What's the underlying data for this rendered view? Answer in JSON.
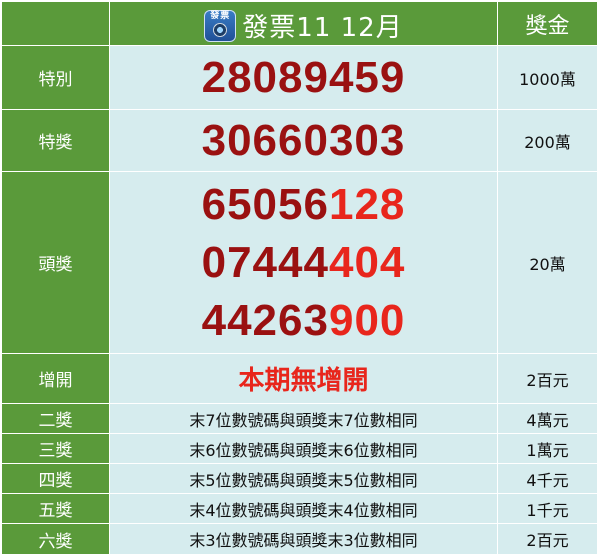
{
  "header": {
    "icon_text": "發票",
    "title": "發票11 12月",
    "prize_col": "獎金"
  },
  "rows": [
    {
      "label": "特別",
      "numbers": [
        {
          "prefix": "28089459",
          "suffix": ""
        }
      ],
      "amount": "1000萬"
    },
    {
      "label": "特獎",
      "numbers": [
        {
          "prefix": "30660303",
          "suffix": ""
        }
      ],
      "amount": "200萬"
    },
    {
      "label": "頭獎",
      "numbers": [
        {
          "prefix": "65056",
          "suffix": "128"
        },
        {
          "prefix": "07444",
          "suffix": "404"
        },
        {
          "prefix": "44263",
          "suffix": "900"
        }
      ],
      "amount": "20萬"
    },
    {
      "label": "增開",
      "text": "本期無增開",
      "amount": "2百元"
    },
    {
      "label": "二獎",
      "desc": "末7位數號碼與頭獎末7位數相同",
      "amount": "4萬元"
    },
    {
      "label": "三獎",
      "desc": "末6位數號碼與頭獎末6位數相同",
      "amount": "1萬元"
    },
    {
      "label": "四獎",
      "desc": "末5位數號碼與頭獎末5位數相同",
      "amount": "4千元"
    },
    {
      "label": "五獎",
      "desc": "末4位數號碼與頭獎末4位數相同",
      "amount": "1千元"
    },
    {
      "label": "六獎",
      "desc": "末3位數號碼與頭獎末3位數相同",
      "amount": "2百元"
    }
  ],
  "colors": {
    "header_green": "#5a9a3a",
    "cell_light": "#d6ecee",
    "number_dark_red": "#9a1111",
    "number_bright_red": "#e8261c"
  }
}
